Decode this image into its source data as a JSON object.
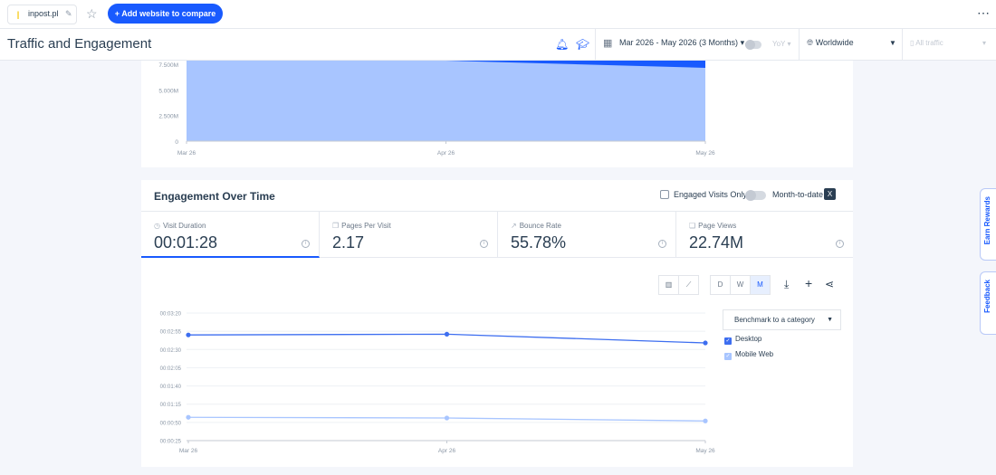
{
  "topbar": {
    "site": "inpost.pl",
    "add_button": "+ Add website to compare"
  },
  "header": {
    "title": "Traffic and Engagement",
    "date_range": "Mar 2026 - May 2026 (3 Months)",
    "yoy": "YoY",
    "country": "Worldwide",
    "traffic": "All traffic"
  },
  "traffic_chart": {
    "chart_data": {
      "type": "area",
      "x": [
        "Mar 26",
        "Apr 26",
        "May 26"
      ],
      "y_ticks": [
        "7.500M",
        "5.000M",
        "2.500M",
        "0"
      ],
      "ylim": [
        0,
        8000000
      ],
      "series": [
        {
          "color": "#195afe",
          "values": [
            7900000,
            7900000,
            7900000
          ]
        },
        {
          "color": "#a8c5ff",
          "values": [
            7850000,
            7850000,
            7150000
          ]
        }
      ]
    }
  },
  "engagement": {
    "title": "Engagement Over Time",
    "engaged_only": "Engaged Visits Only",
    "month_to_date": "Month-to-date",
    "metrics": [
      {
        "label": "Visit Duration",
        "value": "00:01:28",
        "active": true
      },
      {
        "label": "Pages Per Visit",
        "value": "2.17"
      },
      {
        "label": "Bounce Rate",
        "value": "55.78%"
      },
      {
        "label": "Page Views",
        "value": "22.74M"
      }
    ],
    "granularity": [
      "D",
      "W",
      "M"
    ],
    "benchmark": "Benchmark to a category",
    "legend": [
      {
        "name": "Desktop",
        "color": "#3d6ef0"
      },
      {
        "name": "Mobile Web",
        "color": "#a8c5ff"
      }
    ],
    "chart_data": {
      "type": "line",
      "x": [
        "Mar 26",
        "Apr 26",
        "May 26"
      ],
      "y_ticks": [
        "00:03:20",
        "00:02:55",
        "00:02:30",
        "00:02:05",
        "00:01:40",
        "00:01:15",
        "00:00:50",
        "00:00:25"
      ],
      "ylim_seconds": [
        25,
        200
      ],
      "series": [
        {
          "name": "Desktop",
          "color": "#3d6ef0",
          "values": [
            170,
            171,
            159
          ]
        },
        {
          "name": "Mobile Web",
          "color": "#a8c5ff",
          "values": [
            57,
            56,
            52
          ]
        }
      ]
    }
  },
  "side": {
    "rewards": "Earn Rewards",
    "feedback": "Feedback"
  }
}
